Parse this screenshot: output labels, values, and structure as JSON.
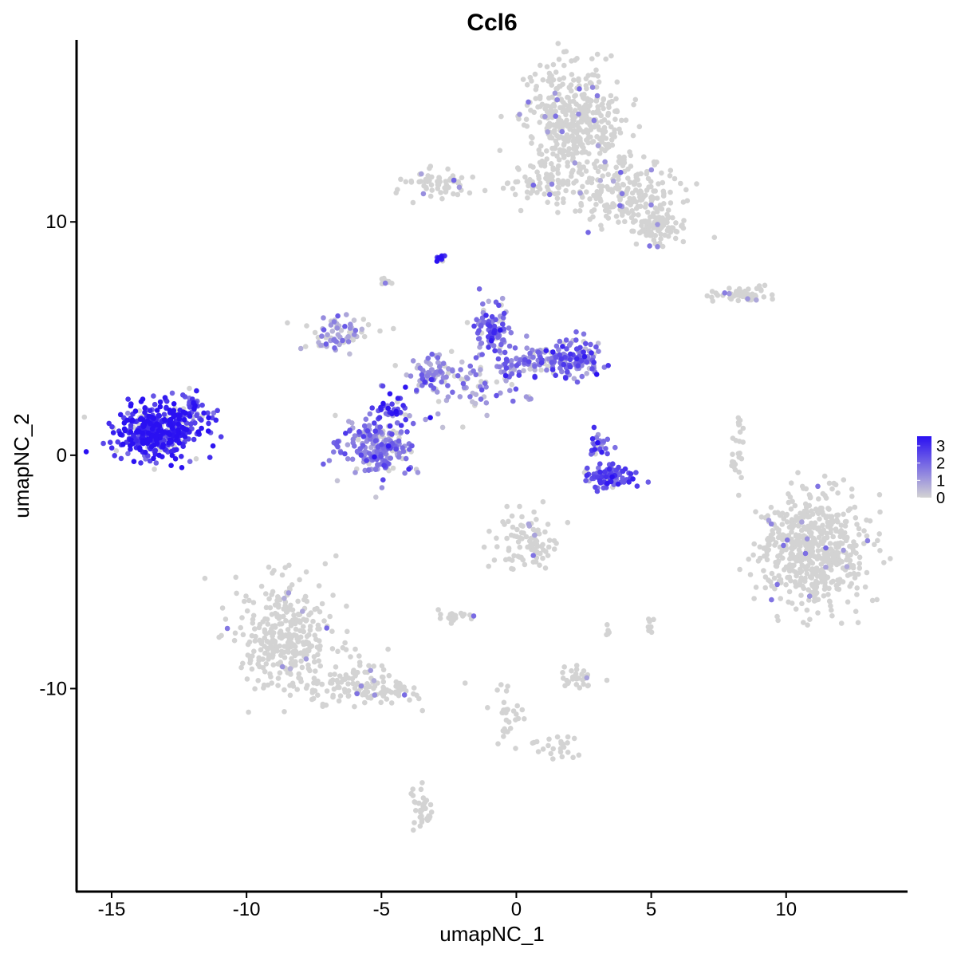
{
  "chart_data": {
    "type": "scatter",
    "title": "Ccl6",
    "xlabel": "umapNC_1",
    "ylabel": "umapNC_2",
    "xlim": [
      -16.3,
      14.5
    ],
    "ylim": [
      -18.7,
      17.8
    ],
    "x_ticks": [
      -15,
      -10,
      -5,
      0,
      5,
      10
    ],
    "x_tick_labels": [
      "-15",
      "-10",
      "-5",
      "0",
      "5",
      "10"
    ],
    "y_ticks": [
      10,
      0,
      -10
    ],
    "y_tick_labels": [
      "10",
      "0",
      "-10"
    ],
    "grid": false,
    "legend": {
      "position": "right",
      "type": "colorbar",
      "labels": [
        "3",
        "2",
        "1",
        "0"
      ],
      "values": [
        3,
        2,
        1,
        0
      ],
      "low_color": "#d3d3d3",
      "high_color": "#2a10f2"
    },
    "clusters": [
      {
        "cx": -13.4,
        "cy": 1.0,
        "sx": 0.75,
        "sy": 0.55,
        "n": 420,
        "expr": 2.6
      },
      {
        "cx": -12.0,
        "cy": 1.8,
        "sx": 0.45,
        "sy": 0.45,
        "n": 60,
        "expr": 2.2
      },
      {
        "cx": -5.1,
        "cy": 0.3,
        "sx": 0.7,
        "sy": 0.65,
        "n": 220,
        "expr": 1.3
      },
      {
        "cx": -4.6,
        "cy": 2.0,
        "sx": 0.3,
        "sy": 0.4,
        "n": 40,
        "expr": 2.2
      },
      {
        "cx": -6.6,
        "cy": 5.2,
        "sx": 0.6,
        "sy": 0.4,
        "n": 70,
        "expr": 0.7
      },
      {
        "cx": -3.2,
        "cy": 3.5,
        "sx": 0.6,
        "sy": 0.45,
        "n": 80,
        "expr": 0.9
      },
      {
        "cx": -0.9,
        "cy": 5.4,
        "sx": 0.35,
        "sy": 0.55,
        "n": 90,
        "expr": 1.6
      },
      {
        "cx": 0.8,
        "cy": 4.1,
        "sx": 0.9,
        "sy": 0.4,
        "n": 110,
        "expr": 1.4
      },
      {
        "cx": 2.3,
        "cy": 4.1,
        "sx": 0.45,
        "sy": 0.45,
        "n": 90,
        "expr": 1.7
      },
      {
        "cx": -1.3,
        "cy": 2.8,
        "sx": 0.9,
        "sy": 0.6,
        "n": 60,
        "expr": 1.0
      },
      {
        "cx": -2.8,
        "cy": 8.5,
        "sx": 0.08,
        "sy": 0.1,
        "n": 15,
        "expr": 2.8
      },
      {
        "cx": 3.4,
        "cy": -0.9,
        "sx": 0.45,
        "sy": 0.25,
        "n": 90,
        "expr": 2.0
      },
      {
        "cx": 3.0,
        "cy": 0.5,
        "sx": 0.2,
        "sy": 0.3,
        "n": 25,
        "expr": 1.8
      },
      {
        "cx": 2.2,
        "cy": 14.2,
        "sx": 0.9,
        "sy": 1.2,
        "n": 420,
        "expr": 0.03
      },
      {
        "cx": 4.0,
        "cy": 11.2,
        "sx": 0.9,
        "sy": 0.7,
        "n": 200,
        "expr": 0.03
      },
      {
        "cx": 5.2,
        "cy": 9.7,
        "sx": 0.5,
        "sy": 0.4,
        "n": 90,
        "expr": 0.03
      },
      {
        "cx": -2.8,
        "cy": 11.6,
        "sx": 0.6,
        "sy": 0.3,
        "n": 60,
        "expr": 0.03
      },
      {
        "cx": 0.8,
        "cy": 11.5,
        "sx": 0.7,
        "sy": 0.4,
        "n": 60,
        "expr": 0.03
      },
      {
        "cx": 8.3,
        "cy": 6.9,
        "sx": 0.6,
        "sy": 0.2,
        "n": 55,
        "expr": 0.03
      },
      {
        "cx": 8.2,
        "cy": 0.1,
        "sx": 0.12,
        "sy": 0.8,
        "n": 25,
        "expr": 0.03
      },
      {
        "cx": 11.0,
        "cy": -4.1,
        "sx": 1.0,
        "sy": 1.2,
        "n": 560,
        "expr": 0.05
      },
      {
        "cx": 0.4,
        "cy": -3.7,
        "sx": 0.6,
        "sy": 0.6,
        "n": 90,
        "expr": 0.05
      },
      {
        "cx": -8.5,
        "cy": -7.8,
        "sx": 0.9,
        "sy": 1.2,
        "n": 320,
        "expr": 0.02
      },
      {
        "cx": -6.2,
        "cy": -9.8,
        "sx": 1.2,
        "sy": 0.45,
        "n": 110,
        "expr": 0.02
      },
      {
        "cx": -4.4,
        "cy": -10.1,
        "sx": 0.5,
        "sy": 0.2,
        "n": 35,
        "expr": 0.02
      },
      {
        "cx": -2.3,
        "cy": -6.9,
        "sx": 0.3,
        "sy": 0.15,
        "n": 20,
        "expr": 0.02
      },
      {
        "cx": 2.2,
        "cy": -9.5,
        "sx": 0.35,
        "sy": 0.25,
        "n": 30,
        "expr": 0.02
      },
      {
        "cx": 1.5,
        "cy": -12.5,
        "sx": 0.45,
        "sy": 0.25,
        "n": 25,
        "expr": 0.02
      },
      {
        "cx": -0.3,
        "cy": -11.0,
        "sx": 0.25,
        "sy": 0.7,
        "n": 30,
        "expr": 0.02
      },
      {
        "cx": -3.5,
        "cy": -15.2,
        "sx": 0.2,
        "sy": 0.5,
        "n": 35,
        "expr": 0.02
      },
      {
        "cx": -4.8,
        "cy": 7.4,
        "sx": 0.1,
        "sy": 0.1,
        "n": 10,
        "expr": 0.02
      },
      {
        "cx": 5.0,
        "cy": -7.3,
        "sx": 0.1,
        "sy": 0.2,
        "n": 8,
        "expr": 0.02
      },
      {
        "cx": 3.4,
        "cy": -7.5,
        "sx": 0.05,
        "sy": 0.15,
        "n": 5,
        "expr": 0.02
      }
    ]
  }
}
